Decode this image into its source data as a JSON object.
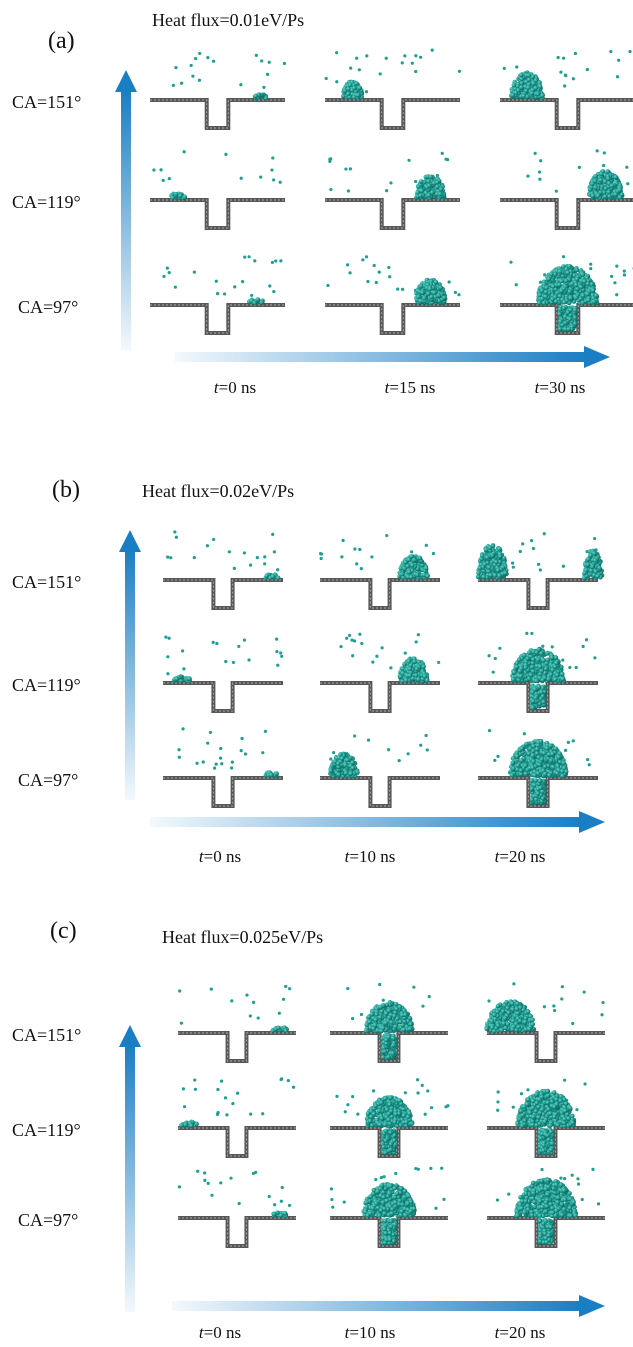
{
  "colors": {
    "water": "#1f9e93",
    "water_light": "#49c2b4",
    "water_dark": "#0f6e66",
    "substrate": "#585858",
    "arrow": "#1a7ec4"
  },
  "panels": [
    {
      "label": "(a)",
      "heat_flux": "Heat flux=0.01eV/Ps",
      "rows": [
        "CA=151°",
        "CA=119°",
        "CA=97°"
      ],
      "times": [
        {
          "t": "t",
          "rest": "=0 ns"
        },
        {
          "t": "t",
          "rest": "=15 ns"
        },
        {
          "t": "t",
          "rest": "=30 ns"
        }
      ]
    },
    {
      "label": "(b)",
      "heat_flux": "Heat flux=0.02eV/Ps",
      "rows": [
        "CA=151°",
        "CA=119°",
        "CA=97°"
      ],
      "times": [
        {
          "t": "t",
          "rest": "=0 ns"
        },
        {
          "t": "t",
          "rest": "=10 ns"
        },
        {
          "t": "t",
          "rest": "=20 ns"
        }
      ]
    },
    {
      "label": "(c)",
      "heat_flux": "Heat flux=0.025eV/Ps",
      "rows": [
        "CA=151°",
        "CA=119°",
        "CA=97°"
      ],
      "times": [
        {
          "t": "t",
          "rest": "=0 ns"
        },
        {
          "t": "t",
          "rest": "=10 ns"
        },
        {
          "t": "t",
          "rest": "=20 ns"
        }
      ]
    }
  ]
}
